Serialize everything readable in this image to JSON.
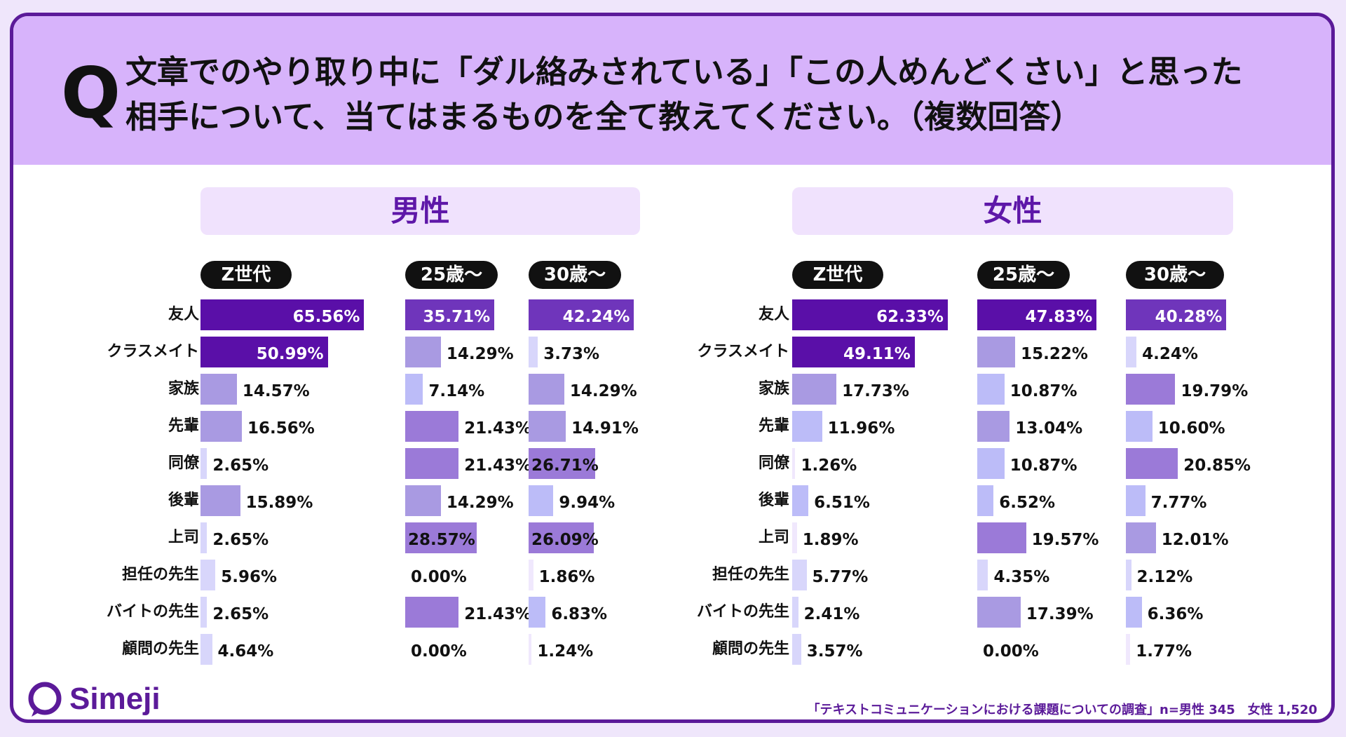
{
  "question": {
    "mark": "Q",
    "line1": "文章でのやり取り中に「ダル絡みされている」「この人めんどくさい」と思った",
    "line2": "相手について、当てはまるものを全て教えてください。（複数回答）"
  },
  "chart_data": {
    "type": "bar",
    "orientation": "horizontal",
    "unit": "%",
    "categories": [
      "友人",
      "クラスメイト",
      "家族",
      "先輩",
      "同僚",
      "後輩",
      "上司",
      "担任の先生",
      "バイトの先生",
      "顧問の先生"
    ],
    "panels": [
      {
        "title": "男性",
        "series": [
          {
            "name": "Z世代",
            "values": [
              65.56,
              50.99,
              14.57,
              16.56,
              2.65,
              15.89,
              2.65,
              5.96,
              2.65,
              4.64
            ],
            "labels": [
              "65.56%",
              "50.99%",
              "14.57%",
              "16.56%",
              "2.65%",
              "15.89%",
              "2.65%",
              "5.96%",
              "2.65%",
              "4.64%"
            ]
          },
          {
            "name": "25歳〜",
            "values": [
              35.71,
              14.29,
              7.14,
              21.43,
              21.43,
              14.29,
              28.57,
              0.0,
              21.43,
              0.0
            ],
            "labels": [
              "35.71%",
              "14.29%",
              "7.14%",
              "21.43%",
              "21.43%",
              "14.29%",
              "28.57%",
              "0.00%",
              "21.43%",
              "0.00%"
            ]
          },
          {
            "name": "30歳〜",
            "values": [
              42.24,
              3.73,
              14.29,
              14.91,
              26.71,
              9.94,
              26.09,
              1.86,
              6.83,
              1.24
            ],
            "labels": [
              "42.24%",
              "3.73%",
              "14.29%",
              "14.91%",
              "26.71%",
              "9.94%",
              "26.09%",
              "1.86%",
              "6.83%",
              "1.24%"
            ]
          }
        ]
      },
      {
        "title": "女性",
        "series": [
          {
            "name": "Z世代",
            "values": [
              62.33,
              49.11,
              17.73,
              11.96,
              1.26,
              6.51,
              1.89,
              5.77,
              2.41,
              3.57
            ],
            "labels": [
              "62.33%",
              "49.11%",
              "17.73%",
              "11.96%",
              "1.26%",
              "6.51%",
              "1.89%",
              "5.77%",
              "2.41%",
              "3.57%"
            ]
          },
          {
            "name": "25歳〜",
            "values": [
              47.83,
              15.22,
              10.87,
              13.04,
              10.87,
              6.52,
              19.57,
              4.35,
              17.39,
              0.0
            ],
            "labels": [
              "47.83%",
              "15.22%",
              "10.87%",
              "13.04%",
              "10.87%",
              "6.52%",
              "19.57%",
              "4.35%",
              "17.39%",
              "0.00%"
            ]
          },
          {
            "name": "30歳〜",
            "values": [
              40.28,
              4.24,
              19.79,
              10.6,
              20.85,
              7.77,
              12.01,
              2.12,
              6.36,
              1.77
            ],
            "labels": [
              "40.28%",
              "4.24%",
              "19.79%",
              "10.60%",
              "20.85%",
              "7.77%",
              "12.01%",
              "2.12%",
              "6.36%",
              "1.77%"
            ]
          }
        ]
      }
    ],
    "colors": [
      "#5a0fa8",
      "#6f35bb",
      "#9b7ad8",
      "#a99ae2",
      "#bcbcf8",
      "#d8d6fb",
      "#f0e8fd"
    ]
  },
  "logo": {
    "text": "Simeji"
  },
  "footnote": "「テキストコミュニケーションにおける課題についての調査」n=男性 345　女性 1,520"
}
